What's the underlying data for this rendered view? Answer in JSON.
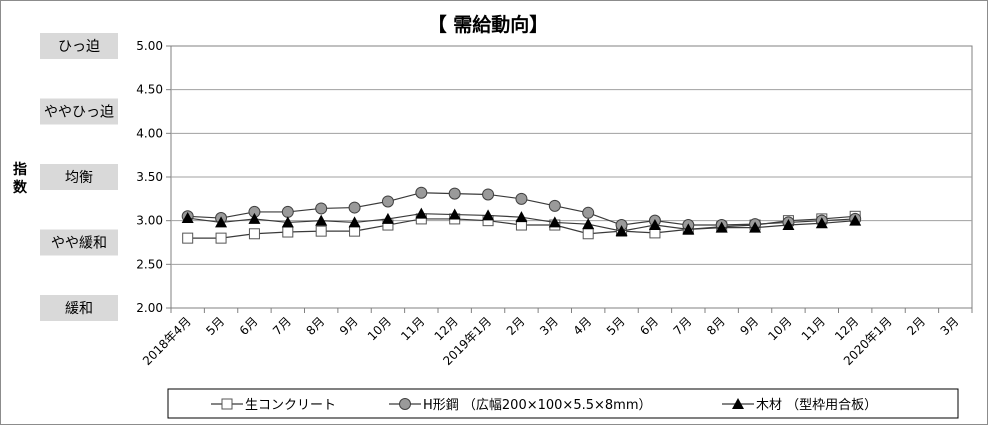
{
  "chart_data": {
    "type": "line",
    "title": "【 需給動向】",
    "ylabel": "指数",
    "ylim": [
      2.0,
      5.0
    ],
    "yticks": [
      "2.00",
      "2.50",
      "3.00",
      "3.50",
      "4.00",
      "4.50",
      "5.00"
    ],
    "grid": true,
    "legend_position": "bottom",
    "bands": [
      {
        "label": "ひっ迫",
        "value": 5.0
      },
      {
        "label": "ややひっ迫",
        "value": 4.25
      },
      {
        "label": "均衡",
        "value": 3.5
      },
      {
        "label": "やや緩和",
        "value": 2.75
      },
      {
        "label": "緩和",
        "value": 2.0
      }
    ],
    "categories": [
      "2018年4月",
      "5月",
      "6月",
      "7月",
      "8月",
      "9月",
      "10月",
      "11月",
      "12月",
      "2019年1月",
      "2月",
      "3月",
      "4月",
      "5月",
      "6月",
      "7月",
      "8月",
      "9月",
      "10月",
      "11月",
      "12月",
      "2020年1月",
      "2月",
      "3月"
    ],
    "series": [
      {
        "name": "生コンクリート",
        "marker": "square",
        "values": [
          2.8,
          2.8,
          2.85,
          2.87,
          2.88,
          2.88,
          2.95,
          3.02,
          3.02,
          3.0,
          2.95,
          2.95,
          2.85,
          2.88,
          2.86,
          2.9,
          2.93,
          2.95,
          3.0,
          3.02,
          3.05,
          null,
          null,
          null
        ]
      },
      {
        "name": "H形鋼 （広幅200×100×5.5×8mm）",
        "marker": "circle",
        "values": [
          3.05,
          3.03,
          3.1,
          3.1,
          3.14,
          3.15,
          3.22,
          3.32,
          3.31,
          3.3,
          3.25,
          3.17,
          3.09,
          2.95,
          3.0,
          2.95,
          2.95,
          2.96,
          2.98,
          3.0,
          3.02,
          null,
          null,
          null
        ]
      },
      {
        "name": "木材 （型枠用合板）",
        "marker": "triangle",
        "values": [
          3.03,
          2.98,
          3.02,
          2.98,
          3.0,
          2.98,
          3.02,
          3.08,
          3.07,
          3.06,
          3.04,
          2.98,
          2.96,
          2.88,
          2.95,
          2.9,
          2.92,
          2.92,
          2.95,
          2.97,
          3.0,
          null,
          null,
          null
        ]
      }
    ]
  }
}
